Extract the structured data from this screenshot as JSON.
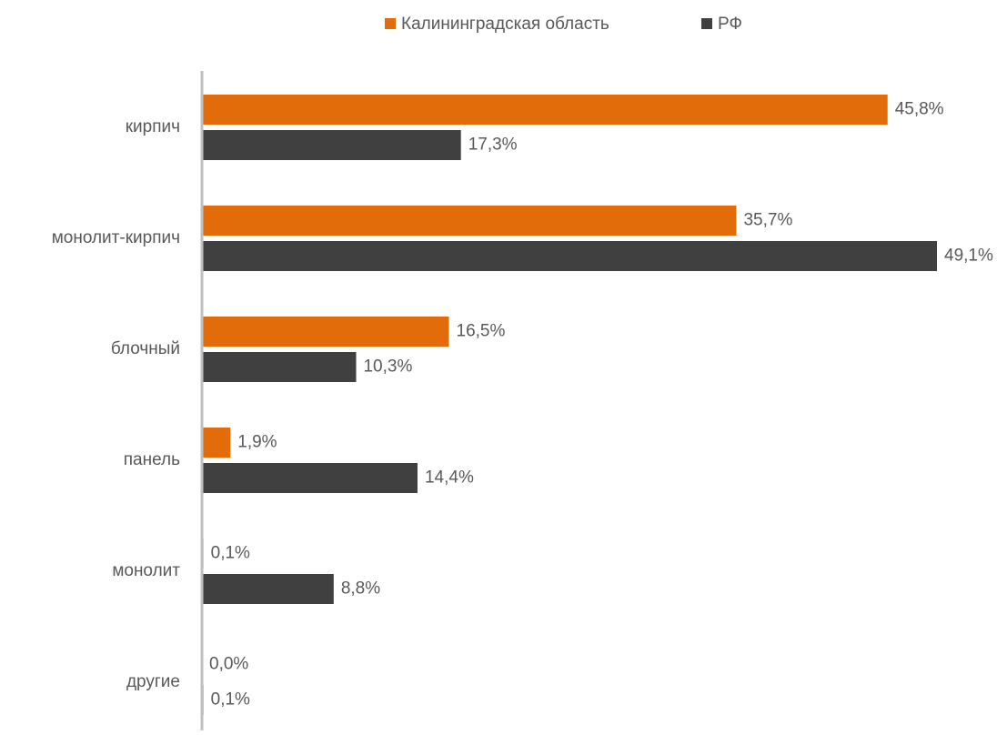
{
  "chart_data": {
    "type": "bar",
    "orientation": "horizontal",
    "title": "",
    "xlabel": "",
    "ylabel": "",
    "categories": [
      "кирпич",
      "монолит-кирпич",
      "блочный",
      "панель",
      "монолит",
      "другие"
    ],
    "series": [
      {
        "name": "Калининградская область",
        "color": "#E36C0A",
        "values": [
          45.8,
          35.7,
          16.5,
          1.9,
          0.1,
          0.0
        ],
        "labels": [
          "45,8%",
          "35,7%",
          "16,5%",
          "1,9%",
          "0,1%",
          "0,0%"
        ]
      },
      {
        "name": "РФ",
        "color": "#404040",
        "values": [
          17.3,
          49.1,
          10.3,
          14.4,
          8.8,
          0.1
        ],
        "labels": [
          "17,3%",
          "49,1%",
          "10,3%",
          "14,4%",
          "8,8%",
          "0,1%"
        ]
      }
    ],
    "xlim": [
      0,
      49.1
    ],
    "grid": false,
    "legend": "top-center"
  }
}
